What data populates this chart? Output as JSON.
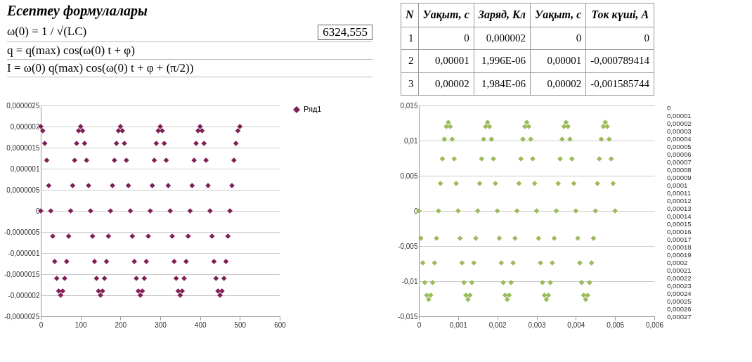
{
  "chart_data": [
    {
      "type": "other",
      "title": "Есептеу формулалары",
      "annotations": [
        "ω(0) = 1 / √(LC)",
        "q = q(max) cos(ω(0) t + φ)",
        "I = ω(0) q(max) cos(ω(0) t + φ + (π/2))",
        "6324,555",
        "N",
        "Уақыт, с",
        "Заряд, Кл",
        "Уақыт, с",
        "Ток күші, А",
        "1",
        "0",
        "0,000002",
        "0",
        "0",
        "2",
        "0,00001",
        "1,996E-06",
        "0,00001",
        "-0,000789414",
        "3",
        "0,00002",
        "1,984E-06",
        "0,00002",
        "-0,001585744"
      ]
    },
    {
      "type": "scatter",
      "marker": "diamond",
      "grid": "y",
      "legend": "right",
      "xlim": [
        0,
        600
      ],
      "xticks": [
        0,
        100,
        200,
        300,
        400,
        500,
        600
      ],
      "ylim": [
        -2.5e-06,
        2.5e-06
      ],
      "yticks": [
        {
          "value": -2.5e-06,
          "label": "-0,0000025"
        },
        {
          "value": -2e-06,
          "label": "-0,000002"
        },
        {
          "value": -1.5e-06,
          "label": "-0,0000015"
        },
        {
          "value": -1e-06,
          "label": "-0,000001"
        },
        {
          "value": -5e-07,
          "label": "-0,0000005"
        },
        0,
        {
          "value": 5e-07,
          "label": "0,0000005"
        },
        {
          "value": 1e-06,
          "label": "0,000001"
        },
        {
          "value": 1.5e-06,
          "label": "0,0000015"
        },
        {
          "value": 2e-06,
          "label": "0,000002"
        },
        {
          "value": 2.5e-06,
          "label": "0,0000025"
        }
      ],
      "series": [
        {
          "name": "Ряд1",
          "color": "#7e1f55",
          "x": [
            0,
            0,
            5,
            10,
            15,
            20,
            25,
            30,
            35,
            40,
            45,
            50,
            55,
            60,
            65,
            70,
            75,
            80,
            85,
            90,
            95,
            100,
            105,
            110,
            115,
            120,
            125,
            130,
            135,
            140,
            145,
            150,
            155,
            160,
            165,
            170,
            175,
            180,
            185,
            190,
            195,
            200,
            205,
            210,
            215,
            220,
            225,
            230,
            235,
            240,
            245,
            250,
            255,
            260,
            265,
            270,
            275,
            280,
            285,
            290,
            295,
            300,
            305,
            310,
            315,
            320,
            325,
            330,
            335,
            340,
            345,
            350,
            355,
            360,
            365,
            370,
            375,
            380,
            385,
            390,
            395,
            400,
            405,
            410,
            415,
            420,
            425,
            430,
            435,
            440,
            445,
            450,
            455,
            460,
            465,
            470,
            475,
            480,
            485,
            490,
            495,
            500
          ],
          "values": [
            0,
            2e-06,
            1.9e-06,
            1.6e-06,
            1.2e-06,
            6e-07,
            0,
            -6e-07,
            -1.2e-06,
            -1.6e-06,
            -1.9e-06,
            -2e-06,
            -1.9e-06,
            -1.6e-06,
            -1.2e-06,
            -6e-07,
            0,
            6e-07,
            1.2e-06,
            1.6e-06,
            1.9e-06,
            2e-06,
            1.9e-06,
            1.6e-06,
            1.2e-06,
            6e-07,
            0,
            -6e-07,
            -1.2e-06,
            -1.6e-06,
            -1.9e-06,
            -2e-06,
            -1.9e-06,
            -1.6e-06,
            -1.2e-06,
            -6e-07,
            0,
            6e-07,
            1.2e-06,
            1.6e-06,
            1.9e-06,
            2e-06,
            1.9e-06,
            1.6e-06,
            1.2e-06,
            6e-07,
            0,
            -6e-07,
            -1.2e-06,
            -1.6e-06,
            -1.9e-06,
            -2e-06,
            -1.9e-06,
            -1.6e-06,
            -1.2e-06,
            -6e-07,
            0,
            6e-07,
            1.2e-06,
            1.6e-06,
            1.9e-06,
            2e-06,
            1.9e-06,
            1.6e-06,
            1.2e-06,
            6e-07,
            0,
            -6e-07,
            -1.2e-06,
            -1.6e-06,
            -1.9e-06,
            -2e-06,
            -1.9e-06,
            -1.6e-06,
            -1.2e-06,
            -6e-07,
            0,
            6e-07,
            1.2e-06,
            1.6e-06,
            1.9e-06,
            2e-06,
            1.9e-06,
            1.6e-06,
            1.2e-06,
            6e-07,
            0,
            -6e-07,
            -1.2e-06,
            -1.6e-06,
            -1.9e-06,
            -2e-06,
            -1.9e-06,
            -1.6e-06,
            -1.2e-06,
            -6e-07,
            0,
            6e-07,
            1.2e-06,
            1.6e-06,
            1.9e-06,
            2e-06
          ]
        }
      ]
    },
    {
      "type": "scatter",
      "marker": "diamond",
      "grid": "y",
      "xlim": [
        0,
        0.006
      ],
      "xticks": [
        0,
        {
          "value": 0.001,
          "label": "0,001"
        },
        {
          "value": 0.002,
          "label": "0,002"
        },
        {
          "value": 0.003,
          "label": "0,003"
        },
        {
          "value": 0.004,
          "label": "0,004"
        },
        {
          "value": 0.005,
          "label": "0,005"
        },
        {
          "value": 0.006,
          "label": "0,006"
        }
      ],
      "ylim": [
        -0.015,
        0.015
      ],
      "yticks": [
        {
          "value": -0.015,
          "label": "-0,015"
        },
        {
          "value": -0.01,
          "label": "-0,01"
        },
        {
          "value": -0.005,
          "label": "-0,005"
        },
        0,
        {
          "value": 0.005,
          "label": "0,005"
        },
        {
          "value": 0.01,
          "label": "0,01"
        },
        {
          "value": 0.015,
          "label": "0,015"
        }
      ],
      "annotations": [
        "0",
        "0,00001",
        "0,00002",
        "0,00003",
        "0,00004",
        "0,00005",
        "0,00006",
        "0,00007",
        "0,00008",
        "0,00009",
        "0,0001",
        "0,00011",
        "0,00012",
        "0,00013",
        "0,00014",
        "0,00015",
        "0,00016",
        "0,00017",
        "0,00018",
        "0,00019",
        "0,0002",
        "0,00021",
        "0,00022",
        "0,00023",
        "0,00024",
        "0,00025",
        "0,00026",
        "0,00027"
      ],
      "series": [
        {
          "color": "#9bbb59",
          "x": [
            0,
            5e-05,
            0.0001,
            0.00015,
            0.0002,
            0.00025,
            0.0003,
            0.00035,
            0.0004,
            0.00045,
            0.0005,
            0.00055,
            0.0006,
            0.00065,
            0.0007,
            0.00075,
            0.0008,
            0.00085,
            0.0009,
            0.00095,
            0.001,
            0.00105,
            0.0011,
            0.00115,
            0.0012,
            0.00125,
            0.0013,
            0.00135,
            0.0014,
            0.00145,
            0.0015,
            0.00155,
            0.0016,
            0.00165,
            0.0017,
            0.00175,
            0.0018,
            0.00185,
            0.0019,
            0.00195,
            0.002,
            0.00205,
            0.0021,
            0.00215,
            0.0022,
            0.00225,
            0.0023,
            0.00235,
            0.0024,
            0.00245,
            0.0025,
            0.00255,
            0.0026,
            0.00265,
            0.0027,
            0.00275,
            0.0028,
            0.00285,
            0.0029,
            0.00295,
            0.003,
            0.00305,
            0.0031,
            0.00315,
            0.0032,
            0.00325,
            0.0033,
            0.00335,
            0.0034,
            0.00345,
            0.0035,
            0.00355,
            0.0036,
            0.00365,
            0.0037,
            0.00375,
            0.0038,
            0.00385,
            0.0039,
            0.00395,
            0.004,
            0.00405,
            0.0041,
            0.00415,
            0.0042,
            0.00425,
            0.0043,
            0.00435,
            0.0044,
            0.00445,
            0.0045,
            0.00455,
            0.0046,
            0.00465,
            0.0047,
            0.00475,
            0.0048,
            0.00485,
            0.0049,
            0.00495,
            0.005
          ],
          "values": [
            0,
            -0.0039,
            -0.0074,
            -0.0102,
            -0.012,
            -0.0126,
            -0.012,
            -0.0102,
            -0.0074,
            -0.0039,
            0,
            0.0039,
            0.0074,
            0.0102,
            0.012,
            0.0126,
            0.012,
            0.0102,
            0.0074,
            0.0039,
            0,
            -0.0039,
            -0.0074,
            -0.0102,
            -0.012,
            -0.0126,
            -0.012,
            -0.0102,
            -0.0074,
            -0.0039,
            0,
            0.0039,
            0.0074,
            0.0102,
            0.012,
            0.0126,
            0.012,
            0.0102,
            0.0074,
            0.0039,
            0,
            -0.0039,
            -0.0074,
            -0.0102,
            -0.012,
            -0.0126,
            -0.012,
            -0.0102,
            -0.0074,
            -0.0039,
            0,
            0.0039,
            0.0074,
            0.0102,
            0.012,
            0.0126,
            0.012,
            0.0102,
            0.0074,
            0.0039,
            0,
            -0.0039,
            -0.0074,
            -0.0102,
            -0.012,
            -0.0126,
            -0.012,
            -0.0102,
            -0.0074,
            -0.0039,
            0,
            0.0039,
            0.0074,
            0.0102,
            0.012,
            0.0126,
            0.012,
            0.0102,
            0.0074,
            0.0039,
            0,
            -0.0039,
            -0.0074,
            -0.0102,
            -0.012,
            -0.0126,
            -0.012,
            -0.0102,
            -0.0074,
            -0.0039,
            0,
            0.0039,
            0.0074,
            0.0102,
            0.012,
            0.0126,
            0.012,
            0.0102,
            0.0074,
            0.0039,
            0
          ]
        }
      ]
    }
  ]
}
